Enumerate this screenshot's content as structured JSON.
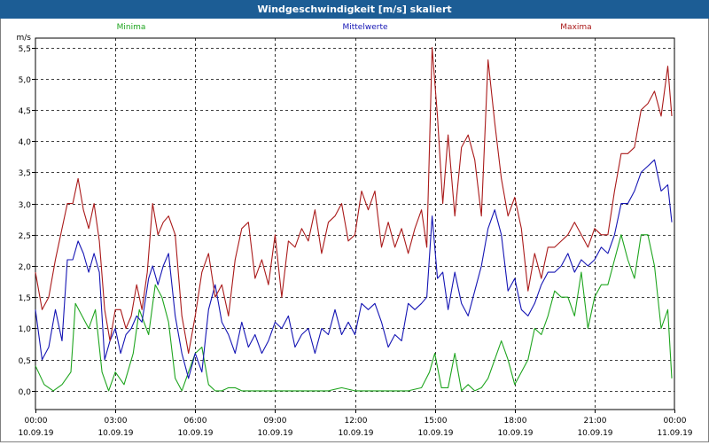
{
  "window": {
    "title": "Windgeschwindigkeit [m/s] skaliert"
  },
  "colors": {
    "min": "#1fa51f",
    "mean": "#1515b4",
    "max": "#aa1a1a",
    "titlebar": "#1c5d95"
  },
  "chart_data": {
    "type": "line",
    "ylabel": "m/s",
    "ylim": [
      -0.3,
      5.65
    ],
    "xlim": [
      0,
      24
    ],
    "yticks": [
      "0,0",
      "0,5",
      "1,0",
      "1,5",
      "2,0",
      "2,5",
      "3,0",
      "3,5",
      "4,0",
      "4,5",
      "5,0",
      "5,5"
    ],
    "xticks": [
      {
        "time": "00:00",
        "date": "10.09.19"
      },
      {
        "time": "03:00",
        "date": "10.09.19"
      },
      {
        "time": "06:00",
        "date": "10.09.19"
      },
      {
        "time": "09:00",
        "date": "10.09.19"
      },
      {
        "time": "12:00",
        "date": "10.09.19"
      },
      {
        "time": "15:00",
        "date": "10.09.19"
      },
      {
        "time": "18:00",
        "date": "10.09.19"
      },
      {
        "time": "21:00",
        "date": "10.09.19"
      },
      {
        "time": "00:00",
        "date": "11.09.19"
      }
    ],
    "grid": true,
    "series": [
      {
        "name": "Minima",
        "key": "min",
        "points": [
          [
            0.0,
            0.4
          ],
          [
            0.33,
            0.1
          ],
          [
            0.67,
            0.0
          ],
          [
            1.0,
            0.1
          ],
          [
            1.33,
            0.3
          ],
          [
            1.5,
            1.4
          ],
          [
            1.75,
            1.2
          ],
          [
            2.0,
            1.0
          ],
          [
            2.25,
            1.3
          ],
          [
            2.5,
            0.3
          ],
          [
            2.75,
            0.0
          ],
          [
            3.0,
            0.3
          ],
          [
            3.33,
            0.1
          ],
          [
            3.67,
            0.6
          ],
          [
            3.9,
            1.3
          ],
          [
            4.25,
            0.9
          ],
          [
            4.5,
            1.7
          ],
          [
            4.75,
            1.5
          ],
          [
            5.0,
            1.1
          ],
          [
            5.25,
            0.2
          ],
          [
            5.5,
            0.0
          ],
          [
            5.75,
            0.3
          ],
          [
            6.0,
            0.6
          ],
          [
            6.25,
            0.7
          ],
          [
            6.5,
            0.1
          ],
          [
            6.75,
            0.0
          ],
          [
            7.0,
            0.0
          ],
          [
            7.25,
            0.05
          ],
          [
            7.5,
            0.05
          ],
          [
            7.75,
            0.0
          ],
          [
            8.0,
            0.0
          ],
          [
            8.5,
            0.0
          ],
          [
            9.0,
            0.0
          ],
          [
            9.5,
            0.0
          ],
          [
            10.0,
            0.0
          ],
          [
            10.5,
            0.0
          ],
          [
            11.0,
            0.0
          ],
          [
            11.5,
            0.05
          ],
          [
            12.0,
            0.0
          ],
          [
            12.5,
            0.0
          ],
          [
            13.0,
            0.0
          ],
          [
            13.5,
            0.0
          ],
          [
            14.0,
            0.0
          ],
          [
            14.5,
            0.05
          ],
          [
            14.8,
            0.3
          ],
          [
            15.0,
            0.6
          ],
          [
            15.25,
            0.05
          ],
          [
            15.5,
            0.05
          ],
          [
            15.75,
            0.6
          ],
          [
            16.0,
            0.0
          ],
          [
            16.25,
            0.1
          ],
          [
            16.5,
            0.0
          ],
          [
            16.75,
            0.05
          ],
          [
            17.0,
            0.2
          ],
          [
            17.25,
            0.5
          ],
          [
            17.5,
            0.8
          ],
          [
            17.75,
            0.5
          ],
          [
            18.0,
            0.1
          ],
          [
            18.25,
            0.3
          ],
          [
            18.5,
            0.5
          ],
          [
            18.75,
            1.0
          ],
          [
            19.0,
            0.9
          ],
          [
            19.25,
            1.2
          ],
          [
            19.5,
            1.6
          ],
          [
            19.75,
            1.5
          ],
          [
            20.0,
            1.5
          ],
          [
            20.25,
            1.2
          ],
          [
            20.5,
            1.9
          ],
          [
            20.75,
            1.0
          ],
          [
            21.0,
            1.5
          ],
          [
            21.25,
            1.7
          ],
          [
            21.5,
            1.7
          ],
          [
            21.75,
            2.1
          ],
          [
            22.0,
            2.5
          ],
          [
            22.25,
            2.1
          ],
          [
            22.5,
            1.8
          ],
          [
            22.75,
            2.5
          ],
          [
            23.0,
            2.5
          ],
          [
            23.25,
            2.0
          ],
          [
            23.5,
            1.0
          ],
          [
            23.75,
            1.3
          ],
          [
            23.9,
            0.2
          ]
        ]
      },
      {
        "name": "Mittelwerte",
        "key": "mean",
        "points": [
          [
            0.0,
            1.3
          ],
          [
            0.25,
            0.5
          ],
          [
            0.5,
            0.7
          ],
          [
            0.75,
            1.3
          ],
          [
            1.0,
            0.8
          ],
          [
            1.2,
            2.1
          ],
          [
            1.4,
            2.1
          ],
          [
            1.6,
            2.4
          ],
          [
            1.8,
            2.2
          ],
          [
            2.0,
            1.9
          ],
          [
            2.2,
            2.2
          ],
          [
            2.4,
            1.9
          ],
          [
            2.6,
            0.5
          ],
          [
            2.8,
            0.8
          ],
          [
            3.0,
            1.0
          ],
          [
            3.2,
            0.6
          ],
          [
            3.4,
            0.9
          ],
          [
            3.6,
            1.0
          ],
          [
            3.8,
            1.2
          ],
          [
            4.0,
            1.1
          ],
          [
            4.25,
            1.8
          ],
          [
            4.4,
            2.0
          ],
          [
            4.6,
            1.7
          ],
          [
            4.8,
            2.0
          ],
          [
            5.0,
            2.2
          ],
          [
            5.25,
            1.2
          ],
          [
            5.5,
            0.6
          ],
          [
            5.75,
            0.2
          ],
          [
            6.0,
            0.6
          ],
          [
            6.25,
            0.3
          ],
          [
            6.5,
            1.3
          ],
          [
            6.75,
            1.7
          ],
          [
            7.0,
            1.1
          ],
          [
            7.25,
            0.9
          ],
          [
            7.5,
            0.6
          ],
          [
            7.75,
            1.1
          ],
          [
            8.0,
            0.7
          ],
          [
            8.25,
            0.9
          ],
          [
            8.5,
            0.6
          ],
          [
            8.75,
            0.8
          ],
          [
            9.0,
            1.1
          ],
          [
            9.25,
            1.0
          ],
          [
            9.5,
            1.2
          ],
          [
            9.75,
            0.7
          ],
          [
            10.0,
            0.9
          ],
          [
            10.25,
            1.0
          ],
          [
            10.5,
            0.6
          ],
          [
            10.75,
            1.0
          ],
          [
            11.0,
            0.9
          ],
          [
            11.25,
            1.3
          ],
          [
            11.5,
            0.9
          ],
          [
            11.75,
            1.1
          ],
          [
            12.0,
            0.9
          ],
          [
            12.25,
            1.4
          ],
          [
            12.5,
            1.3
          ],
          [
            12.75,
            1.4
          ],
          [
            13.0,
            1.1
          ],
          [
            13.25,
            0.7
          ],
          [
            13.5,
            0.9
          ],
          [
            13.75,
            0.8
          ],
          [
            14.0,
            1.4
          ],
          [
            14.25,
            1.3
          ],
          [
            14.5,
            1.4
          ],
          [
            14.7,
            1.5
          ],
          [
            14.9,
            2.8
          ],
          [
            15.1,
            1.8
          ],
          [
            15.3,
            1.9
          ],
          [
            15.5,
            1.3
          ],
          [
            15.75,
            1.9
          ],
          [
            16.0,
            1.4
          ],
          [
            16.25,
            1.2
          ],
          [
            16.5,
            1.6
          ],
          [
            16.75,
            2.0
          ],
          [
            17.0,
            2.6
          ],
          [
            17.25,
            2.9
          ],
          [
            17.5,
            2.5
          ],
          [
            17.75,
            1.6
          ],
          [
            18.0,
            1.8
          ],
          [
            18.25,
            1.3
          ],
          [
            18.5,
            1.2
          ],
          [
            18.75,
            1.4
          ],
          [
            19.0,
            1.7
          ],
          [
            19.25,
            1.9
          ],
          [
            19.5,
            1.9
          ],
          [
            19.75,
            2.0
          ],
          [
            20.0,
            2.2
          ],
          [
            20.25,
            1.9
          ],
          [
            20.5,
            2.1
          ],
          [
            20.75,
            2.0
          ],
          [
            21.0,
            2.1
          ],
          [
            21.25,
            2.3
          ],
          [
            21.5,
            2.2
          ],
          [
            21.75,
            2.5
          ],
          [
            22.0,
            3.0
          ],
          [
            22.25,
            3.0
          ],
          [
            22.5,
            3.2
          ],
          [
            22.75,
            3.5
          ],
          [
            23.0,
            3.6
          ],
          [
            23.25,
            3.7
          ],
          [
            23.5,
            3.2
          ],
          [
            23.75,
            3.3
          ],
          [
            23.9,
            2.7
          ]
        ]
      },
      {
        "name": "Maxima",
        "key": "max",
        "points": [
          [
            0.0,
            1.9
          ],
          [
            0.25,
            1.3
          ],
          [
            0.5,
            1.5
          ],
          [
            0.75,
            2.1
          ],
          [
            1.0,
            2.6
          ],
          [
            1.2,
            3.0
          ],
          [
            1.4,
            3.0
          ],
          [
            1.6,
            3.4
          ],
          [
            1.8,
            2.9
          ],
          [
            2.0,
            2.6
          ],
          [
            2.2,
            3.0
          ],
          [
            2.4,
            2.4
          ],
          [
            2.6,
            1.3
          ],
          [
            2.8,
            0.8
          ],
          [
            3.0,
            1.3
          ],
          [
            3.2,
            1.3
          ],
          [
            3.4,
            1.0
          ],
          [
            3.6,
            1.2
          ],
          [
            3.8,
            1.7
          ],
          [
            4.0,
            1.3
          ],
          [
            4.2,
            1.9
          ],
          [
            4.4,
            3.0
          ],
          [
            4.6,
            2.5
          ],
          [
            4.8,
            2.7
          ],
          [
            5.0,
            2.8
          ],
          [
            5.25,
            2.5
          ],
          [
            5.5,
            1.2
          ],
          [
            5.75,
            0.6
          ],
          [
            6.0,
            1.2
          ],
          [
            6.25,
            1.9
          ],
          [
            6.5,
            2.2
          ],
          [
            6.75,
            1.5
          ],
          [
            7.0,
            1.7
          ],
          [
            7.25,
            1.2
          ],
          [
            7.5,
            2.1
          ],
          [
            7.75,
            2.6
          ],
          [
            8.0,
            2.7
          ],
          [
            8.25,
            1.8
          ],
          [
            8.5,
            2.1
          ],
          [
            8.75,
            1.7
          ],
          [
            9.0,
            2.5
          ],
          [
            9.25,
            1.5
          ],
          [
            9.5,
            2.4
          ],
          [
            9.75,
            2.3
          ],
          [
            10.0,
            2.6
          ],
          [
            10.25,
            2.4
          ],
          [
            10.5,
            2.9
          ],
          [
            10.75,
            2.2
          ],
          [
            11.0,
            2.7
          ],
          [
            11.25,
            2.8
          ],
          [
            11.5,
            3.0
          ],
          [
            11.75,
            2.4
          ],
          [
            12.0,
            2.5
          ],
          [
            12.25,
            3.2
          ],
          [
            12.5,
            2.9
          ],
          [
            12.75,
            3.2
          ],
          [
            13.0,
            2.3
          ],
          [
            13.25,
            2.7
          ],
          [
            13.5,
            2.3
          ],
          [
            13.75,
            2.6
          ],
          [
            14.0,
            2.2
          ],
          [
            14.25,
            2.6
          ],
          [
            14.5,
            2.9
          ],
          [
            14.7,
            2.3
          ],
          [
            14.9,
            5.5
          ],
          [
            15.1,
            4.4
          ],
          [
            15.3,
            3.0
          ],
          [
            15.5,
            4.1
          ],
          [
            15.75,
            2.8
          ],
          [
            16.0,
            3.9
          ],
          [
            16.25,
            4.1
          ],
          [
            16.5,
            3.7
          ],
          [
            16.75,
            2.8
          ],
          [
            17.0,
            5.3
          ],
          [
            17.25,
            4.3
          ],
          [
            17.5,
            3.4
          ],
          [
            17.75,
            2.8
          ],
          [
            18.0,
            3.1
          ],
          [
            18.25,
            2.6
          ],
          [
            18.5,
            1.6
          ],
          [
            18.75,
            2.2
          ],
          [
            19.0,
            1.8
          ],
          [
            19.25,
            2.3
          ],
          [
            19.5,
            2.3
          ],
          [
            19.75,
            2.4
          ],
          [
            20.0,
            2.5
          ],
          [
            20.25,
            2.7
          ],
          [
            20.5,
            2.5
          ],
          [
            20.75,
            2.3
          ],
          [
            21.0,
            2.6
          ],
          [
            21.25,
            2.5
          ],
          [
            21.5,
            2.5
          ],
          [
            21.75,
            3.2
          ],
          [
            22.0,
            3.8
          ],
          [
            22.25,
            3.8
          ],
          [
            22.5,
            3.9
          ],
          [
            22.75,
            4.5
          ],
          [
            23.0,
            4.6
          ],
          [
            23.25,
            4.8
          ],
          [
            23.5,
            4.4
          ],
          [
            23.75,
            5.2
          ],
          [
            23.9,
            4.4
          ]
        ]
      }
    ]
  }
}
